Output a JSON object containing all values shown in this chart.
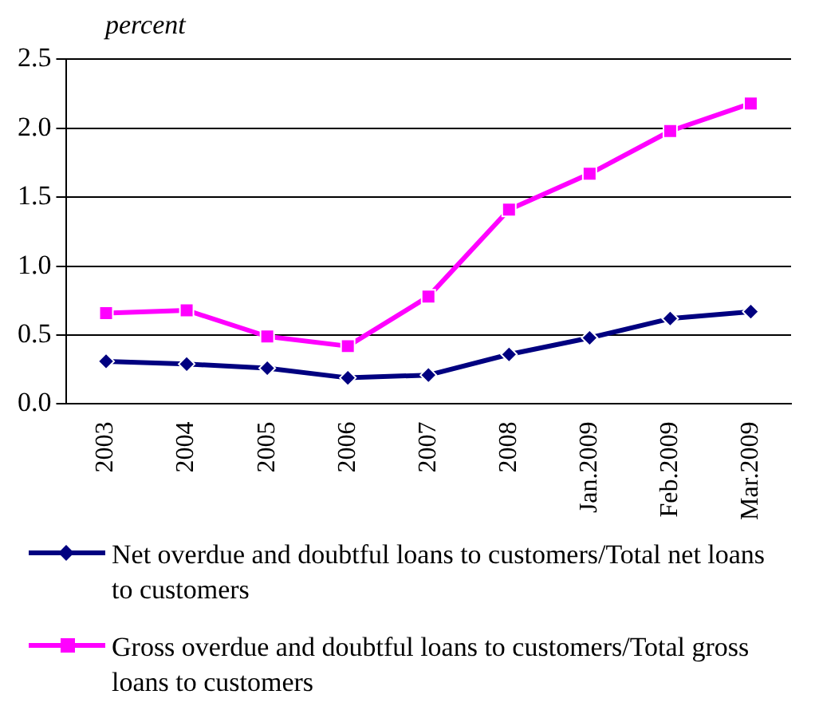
{
  "chart_data": {
    "type": "line",
    "ylabel": "percent",
    "categories": [
      "2003",
      "2004",
      "2005",
      "2006",
      "2007",
      "2008",
      "Jan.2009",
      "Feb.2009",
      "Mar.2009"
    ],
    "series": [
      {
        "name": "Net overdue and doubtful loans to customers/Total net loans to customers",
        "color": "#000080",
        "marker": "diamond",
        "values": [
          0.31,
          0.29,
          0.26,
          0.19,
          0.21,
          0.36,
          0.48,
          0.62,
          0.67
        ]
      },
      {
        "name": "Gross overdue and doubtful loans to customers/Total gross loans to customers",
        "color": "#ff00ff",
        "marker": "square",
        "values": [
          0.66,
          0.68,
          0.49,
          0.42,
          0.78,
          1.41,
          1.67,
          1.98,
          2.18
        ]
      }
    ],
    "ylim": [
      0,
      2.5
    ],
    "yticks": [
      {
        "value": 0,
        "label": "0.0"
      },
      {
        "value": 0.5,
        "label": "0.5"
      },
      {
        "value": 1,
        "label": "1.0"
      },
      {
        "value": 1.5,
        "label": "1.5"
      },
      {
        "value": 2,
        "label": "2.0"
      },
      {
        "value": 2.5,
        "label": "2.5"
      }
    ],
    "grid": "y",
    "legend": "bottom",
    "line_style": "solid"
  }
}
